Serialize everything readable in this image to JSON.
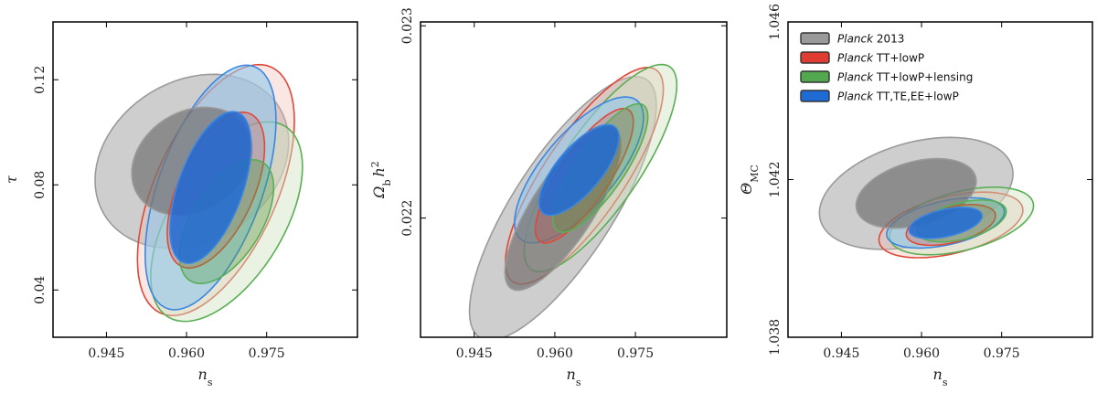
{
  "chart_data": [
    {
      "type": "contour",
      "xlabel": "n_s",
      "ylabel": "τ",
      "xlim": [
        0.935,
        0.992
      ],
      "ylim": [
        0.022,
        0.142
      ],
      "xticks": [
        "0.945",
        "0.960",
        "0.975"
      ],
      "xtick_values": [
        0.945,
        0.96,
        0.975
      ],
      "yticks": [
        "0.04",
        "0.08",
        "0.12"
      ],
      "ytick_values": [
        0.04,
        0.08,
        0.12
      ],
      "series": [
        {
          "key": "planck2013",
          "center": [
            0.961,
            0.089
          ],
          "sd": [
            0.0074,
            0.0135
          ],
          "rho": 0.22
        },
        {
          "key": "tt_lowp",
          "center": [
            0.9655,
            0.078
          ],
          "sd": [
            0.006,
            0.0195
          ],
          "rho": 0.55
        },
        {
          "key": "tt_lowp_lensing",
          "center": [
            0.9675,
            0.066
          ],
          "sd": [
            0.0058,
            0.0155
          ],
          "rho": 0.55
        },
        {
          "key": "tt_te_ee_lowp",
          "center": [
            0.9645,
            0.079
          ],
          "sd": [
            0.005,
            0.019
          ],
          "rho": 0.55
        }
      ]
    },
    {
      "type": "contour",
      "xlabel": "n_s",
      "ylabel": "Ω_b h²",
      "xlim": [
        0.935,
        0.992
      ],
      "ylim": [
        0.02138,
        0.02302
      ],
      "xticks": [
        "0.945",
        "0.960",
        "0.975"
      ],
      "xtick_values": [
        0.945,
        0.96,
        0.975
      ],
      "yticks": [
        "0.022",
        "0.023"
      ],
      "ytick_values": [
        0.022,
        0.023
      ],
      "series": [
        {
          "key": "planck2013",
          "center": [
            0.9615,
            0.02205
          ],
          "sd": [
            0.0071,
            0.00028
          ],
          "rho": 0.78
        },
        {
          "key": "tt_lowp",
          "center": [
            0.9655,
            0.02222
          ],
          "sd": [
            0.006,
            0.00023
          ],
          "rho": 0.8
        },
        {
          "key": "tt_lowp_lensing",
          "center": [
            0.9685,
            0.02226
          ],
          "sd": [
            0.0058,
            0.00022
          ],
          "rho": 0.8
        },
        {
          "key": "tt_te_ee_lowp",
          "center": [
            0.9645,
            0.02225
          ],
          "sd": [
            0.0049,
            0.000155
          ],
          "rho": 0.72
        }
      ]
    },
    {
      "type": "contour",
      "xlabel": "n_s",
      "ylabel": "Θ_MC",
      "xlim": [
        0.935,
        0.992
      ],
      "ylim": [
        1.038,
        1.046
      ],
      "xticks": [
        "0.945",
        "0.960",
        "0.975"
      ],
      "xtick_values": [
        0.945,
        0.96,
        0.975
      ],
      "yticks": [
        "1.038",
        "1.042",
        "1.046"
      ],
      "ytick_values": [
        1.038,
        1.042,
        1.046
      ],
      "series": [
        {
          "key": "planck2013",
          "center": [
            0.959,
            1.04165
          ],
          "sd": [
            0.0074,
            0.00058
          ],
          "rho": 0.35
        },
        {
          "key": "tt_lowp",
          "center": [
            0.9655,
            1.04085
          ],
          "sd": [
            0.0055,
            0.00034
          ],
          "rho": 0.45
        },
        {
          "key": "tt_lowp_lensing",
          "center": [
            0.9675,
            1.04095
          ],
          "sd": [
            0.0055,
            0.00035
          ],
          "rho": 0.45
        },
        {
          "key": "tt_te_ee_lowp",
          "center": [
            0.9645,
            1.0409
          ],
          "sd": [
            0.0045,
            0.00026
          ],
          "rho": 0.45
        }
      ]
    }
  ],
  "legend": {
    "items": [
      {
        "key": "planck2013",
        "italic": "Planck",
        "rest": " 2013",
        "fill": "#9a9a9a",
        "stroke": "#333333"
      },
      {
        "key": "tt_lowp",
        "italic": "Planck",
        "rest": " TT+lowP",
        "fill": "#e03c31",
        "stroke": "#333333"
      },
      {
        "key": "tt_lowp_lensing",
        "italic": "Planck",
        "rest": " TT+lowP+lensing",
        "fill": "#52a84f",
        "stroke": "#333333"
      },
      {
        "key": "tt_te_ee_lowp",
        "italic": "Planck",
        "rest": " TT,TE,EE+lowP",
        "fill": "#1f6bd6",
        "stroke": "#333333"
      }
    ]
  },
  "styles": {
    "planck2013": {
      "inner": "#777777",
      "outer": "#bdbdbd",
      "line": "#9a9a9a",
      "inner_op": 0.75,
      "outer_op": 0.75
    },
    "tt_lowp": {
      "inner": "#e03c31",
      "outer": "#f1b8ad",
      "line": "#dd4a3a",
      "inner_op": 0.25,
      "outer_op": 0.35
    },
    "tt_lowp_lensing": {
      "inner": "#4f9e45",
      "outer": "#cfe2c0",
      "line": "#5aae55",
      "inner_op": 0.35,
      "outer_op": 0.45
    },
    "tt_te_ee_lowp": {
      "inner": "#1f6bd6",
      "outer": "#92c8ec",
      "line": "#3a86e0",
      "inner_op": 0.85,
      "outer_op": 0.6
    }
  }
}
